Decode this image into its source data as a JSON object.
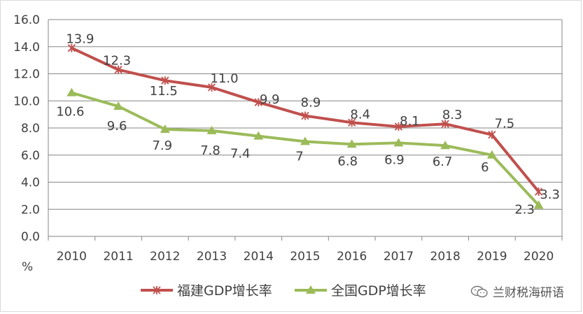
{
  "chart_data": {
    "type": "line",
    "categories": [
      "2010",
      "2011",
      "2012",
      "2013",
      "2014",
      "2015",
      "2016",
      "2017",
      "2018",
      "2019",
      "2020"
    ],
    "series": [
      {
        "name": "福建GDP增长率",
        "values": [
          13.9,
          12.3,
          11.5,
          11.0,
          9.9,
          8.9,
          8.4,
          8.1,
          8.3,
          7.5,
          3.3
        ],
        "labels": [
          "13.9",
          "12.3",
          "11.5",
          "11.0",
          "9.9",
          "8.9",
          "8.4",
          "8.1",
          "8.3",
          "7.5",
          "3.3"
        ],
        "color": "#c0504d",
        "marker": "star"
      },
      {
        "name": "全国GDP增长率",
        "values": [
          10.6,
          9.6,
          7.9,
          7.8,
          7.4,
          7,
          6.8,
          6.9,
          6.7,
          6,
          2.3
        ],
        "labels": [
          "10.6",
          "9.6",
          "7.9",
          "7.8",
          "7.4",
          "7",
          "6.8",
          "6.9",
          "6.7",
          "6",
          "2.3"
        ],
        "color": "#9bbb59",
        "marker": "triangle"
      }
    ],
    "yticks": [
      "0.0",
      "2.0",
      "4.0",
      "6.0",
      "8.0",
      "10.0",
      "12.0",
      "14.0",
      "16.0"
    ],
    "ylim": [
      0,
      16
    ],
    "ylabel": "%",
    "xlabel": "",
    "title": "",
    "grid": true,
    "legend_position": "bottom-center"
  },
  "watermark": "兰财税海研语"
}
